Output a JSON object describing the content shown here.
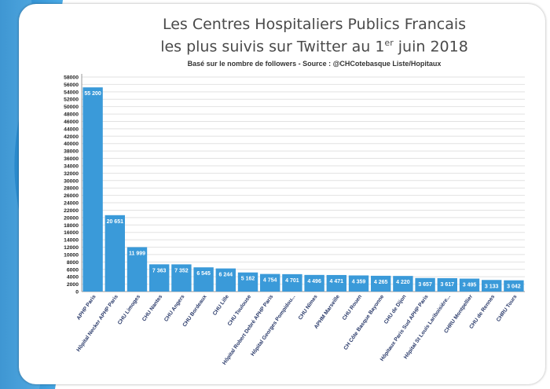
{
  "title_line1": "Les Centres Hospitaliers Publics Francais",
  "title_line2_prefix": "les plus suivis sur Twitter au 1",
  "title_line2_sup": "er",
  "title_line2_suffix": " juin 2018",
  "subtitle": "Basé sur le nombre de followers - Source : @CHCotebasque Liste/Hopitaux",
  "colors": {
    "bar": "#3a9ad9",
    "frame": "#2e8fd0",
    "frame_light": "#7cc3ee"
  },
  "chart_data": {
    "type": "bar",
    "title": "Les Centres Hospitaliers Publics Francais les plus suivis sur Twitter au 1er juin 2018",
    "subtitle": "Basé sur le nombre de followers - Source : @CHCotebasque Liste/Hopitaux",
    "categories": [
      "APHP Paris",
      "Hôpital Necker APHP Paris",
      "CHU Limoges",
      "CHU Nantes",
      "CHU Angers",
      "CHU Bordeaux",
      "CHU Lille",
      "CHU Toulouse",
      "Hôpital Robert Debré APHP Paris",
      "Hôpital Georges Pompidou...",
      "CHU Nîmes",
      "APHM Marseille",
      "CHU Rouen",
      "CH Côte Basque Bayonne",
      "CHU de Dijon",
      "Hôpitaux Paris Sud APHP Paris",
      "Hôpital St Louis Lariboisière...",
      "CHRU Montpellier",
      "CHU de Rennes",
      "CHRU Tours"
    ],
    "values": [
      55200,
      20651,
      11999,
      7363,
      7352,
      6545,
      6244,
      5162,
      4754,
      4701,
      4496,
      4471,
      4359,
      4265,
      4220,
      3657,
      3617,
      3495,
      3133,
      3042
    ],
    "value_labels": [
      "55 200",
      "20 651",
      "11 999",
      "7 363",
      "7 352",
      "6 545",
      "6 244",
      "5 162",
      "4 754",
      "4 701",
      "4 496",
      "4 471",
      "4 359",
      "4 265",
      "4 220",
      "3 657",
      "3 617",
      "3 495",
      "3 133",
      "3 042"
    ],
    "y_ticks": [
      "0",
      "2000",
      "4000",
      "6000",
      "8000",
      "10000",
      "12000",
      "14000",
      "16000",
      "18000",
      "20000",
      "22000",
      "24000",
      "26000",
      "28000",
      "30000",
      "32000",
      "34000",
      "36000",
      "38000",
      "40000",
      "42000",
      "44000",
      "46000",
      "48000",
      "50000",
      "52000",
      "54000",
      "56000",
      "58000"
    ],
    "ylim": [
      0,
      58000
    ],
    "grid": true,
    "xlabel": "",
    "ylabel": ""
  }
}
